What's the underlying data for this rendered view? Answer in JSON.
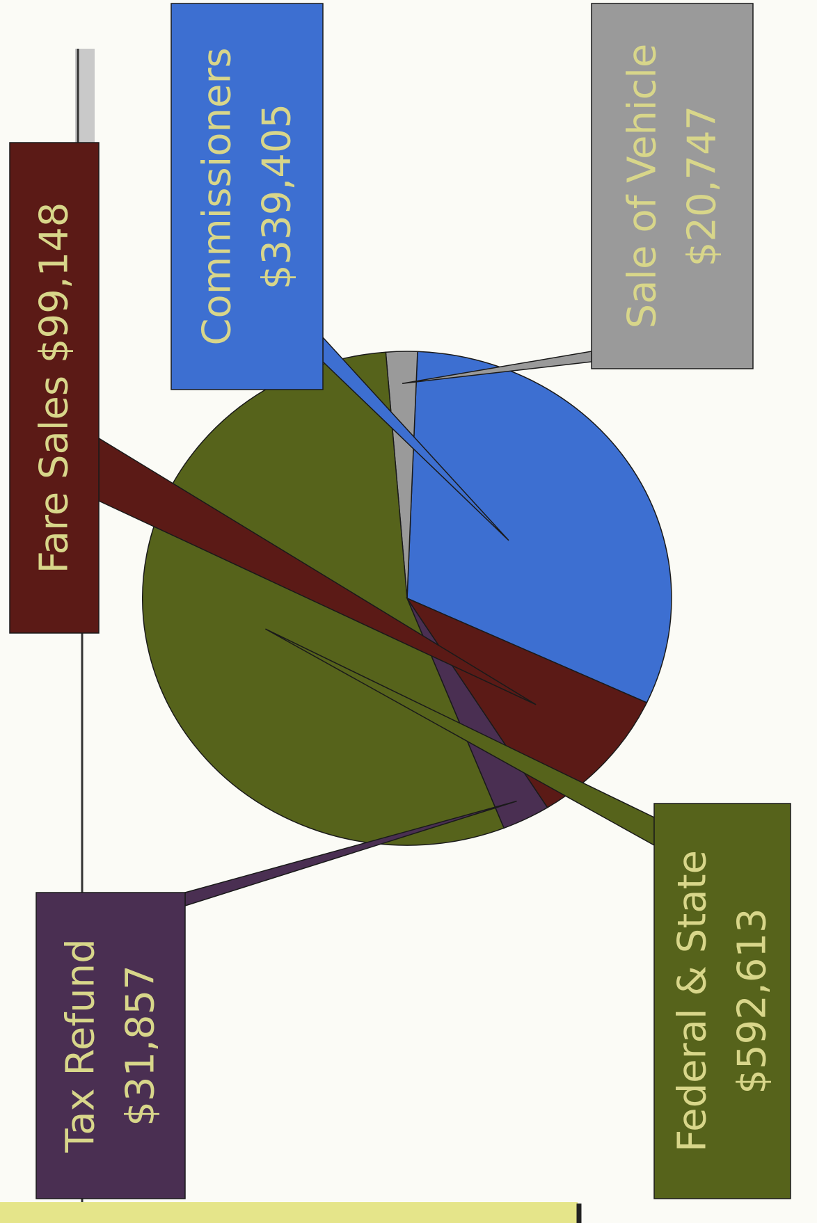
{
  "chart_data": {
    "type": "pie",
    "orientation": "rotated 90 degrees counter-clockwise",
    "title": "",
    "currency": "$",
    "slices": [
      {
        "label": "Commissioners",
        "value": 339405,
        "display": "$339,405",
        "color": "#3d6fd1"
      },
      {
        "label": "Sale of Vehicle",
        "value": 20747,
        "display": "$20,747",
        "color": "#9a9a9a"
      },
      {
        "label": "Federal & State",
        "value": 592613,
        "display": "$592,613",
        "color": "#56631b"
      },
      {
        "label": "Tax Refund",
        "value": 31857,
        "display": "$31,857",
        "color": "#4a2f52"
      },
      {
        "label": "Fare Sales",
        "value": 99148,
        "display": "$99,148",
        "color": "#5b1a16"
      }
    ],
    "callouts": [
      {
        "lines": [
          "Fare Sales $99,148"
        ]
      },
      {
        "lines": [
          "Commissioners",
          "$339,405"
        ]
      },
      {
        "lines": [
          "Sale of Vehicle",
          "$20,747"
        ]
      },
      {
        "lines": [
          "Tax Refund",
          "$31,857"
        ]
      },
      {
        "lines": [
          "Federal & State",
          "$592,613"
        ]
      }
    ],
    "text_color": "#d8d68a"
  }
}
